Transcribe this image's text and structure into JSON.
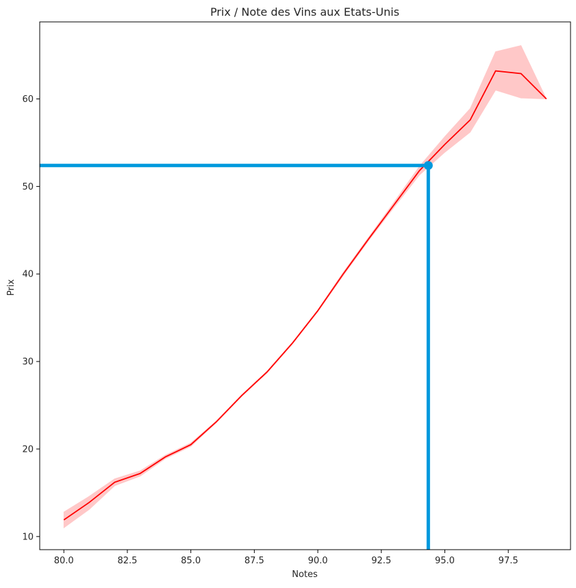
{
  "chart_data": {
    "type": "line",
    "title": "Prix / Note des Vins aux Etats-Unis",
    "xlabel": "Notes",
    "ylabel": "Prix",
    "xlim": [
      79.05,
      99.95
    ],
    "ylim": [
      8.5,
      68.8
    ],
    "x_ticks": [
      80.0,
      82.5,
      85.0,
      87.5,
      90.0,
      92.5,
      95.0,
      97.5
    ],
    "x_tick_labels": [
      "80.0",
      "82.5",
      "85.0",
      "87.5",
      "90.0",
      "92.5",
      "95.0",
      "97.5"
    ],
    "y_ticks": [
      10,
      20,
      30,
      40,
      50,
      60
    ],
    "y_tick_labels": [
      "10",
      "20",
      "30",
      "40",
      "50",
      "60"
    ],
    "grid": false,
    "series": [
      {
        "color": "#ff0000",
        "band_color": "#ffc8c8",
        "x": [
          80,
          81,
          82,
          83,
          84,
          85,
          86,
          87,
          88,
          89,
          90,
          91,
          92,
          93,
          94,
          95,
          96,
          97,
          98,
          99
        ],
        "y": [
          11.9,
          13.9,
          16.2,
          17.2,
          19.1,
          20.5,
          23.1,
          26.1,
          28.8,
          32.1,
          35.8,
          40.0,
          44.0,
          47.9,
          51.8,
          54.8,
          57.6,
          63.2,
          62.9,
          60.0
        ],
        "lower": [
          11.0,
          13.1,
          15.8,
          16.9,
          18.9,
          20.3,
          23.0,
          26.0,
          28.7,
          32.0,
          35.7,
          39.8,
          43.8,
          47.6,
          51.3,
          53.9,
          56.2,
          61.0,
          60.1,
          60.0
        ],
        "upper": [
          12.8,
          14.6,
          16.6,
          17.5,
          19.3,
          20.7,
          23.2,
          26.2,
          28.9,
          32.2,
          35.9,
          40.2,
          44.2,
          48.2,
          52.3,
          55.7,
          58.9,
          65.4,
          66.1,
          60.0
        ]
      }
    ],
    "annotation": {
      "color": "#0099dd",
      "x": 94.35,
      "y": 52.4
    }
  }
}
